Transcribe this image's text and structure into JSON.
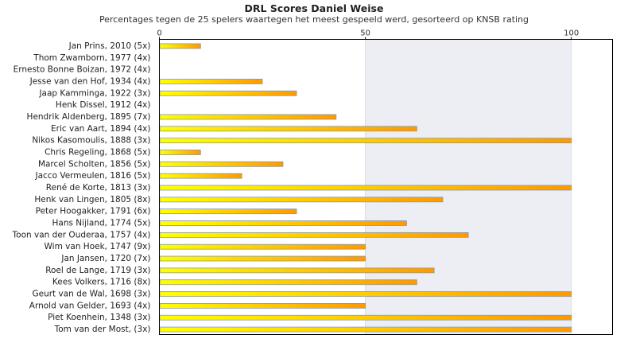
{
  "chart_data": {
    "type": "bar",
    "orientation": "horizontal",
    "title": "DRL Scores Daniel Weise",
    "subtitle": "Percentages tegen de 25 spelers waartegen het meest gespeeld werd, gesorteerd op KNSB rating",
    "xlim": [
      0,
      110
    ],
    "xticks": [
      0,
      50,
      100
    ],
    "grid": true,
    "legend": "none",
    "categories": [
      "Jan Prins, 2010 (5x)",
      "Thom Zwamborn, 1977 (4x)",
      "Ernesto Bonne Boizan, 1972 (4x)",
      "Jesse van den Hof, 1934 (4x)",
      "Jaap Kamminga, 1922 (3x)",
      "Henk Dissel, 1912 (4x)",
      "Hendrik Aldenberg, 1895 (7x)",
      "Eric van Aart, 1894 (4x)",
      "Nikos Kasomoulis, 1888 (3x)",
      "Chris Regeling, 1868 (5x)",
      "Marcel Scholten, 1856 (5x)",
      "Jacco Vermeulen, 1816 (5x)",
      "René de Korte, 1813 (3x)",
      "Henk van Lingen, 1805 (8x)",
      "Peter Hoogakker, 1791 (6x)",
      "Hans Nijland, 1774 (5x)",
      "Toon van der Ouderaa, 1757 (4x)",
      "Wim van Hoek, 1747 (9x)",
      "Jan Jansen, 1720 (7x)",
      "Roel de Lange, 1719 (3x)",
      "Kees Volkers, 1716 (8x)",
      "Geurt van de Wal, 1698 (3x)",
      "Arnold van Gelder, 1693 (4x)",
      "Piet Koenhein, 1348 (3x)",
      "Tom van der Most,  (3x)"
    ],
    "values": [
      10,
      0,
      0,
      25,
      33.3,
      0,
      42.9,
      62.5,
      100,
      10,
      30,
      20,
      100,
      68.8,
      33.3,
      60,
      75,
      50,
      50,
      66.7,
      62.5,
      100,
      50,
      100,
      100
    ],
    "colors": {
      "bar_start": "#ffff00",
      "bar_end": "#ff9900",
      "bar_border": "#8899aa",
      "plot_bg_light": "#ffffff",
      "plot_bg_dark": "#eceef4",
      "axis": "#000000"
    }
  }
}
